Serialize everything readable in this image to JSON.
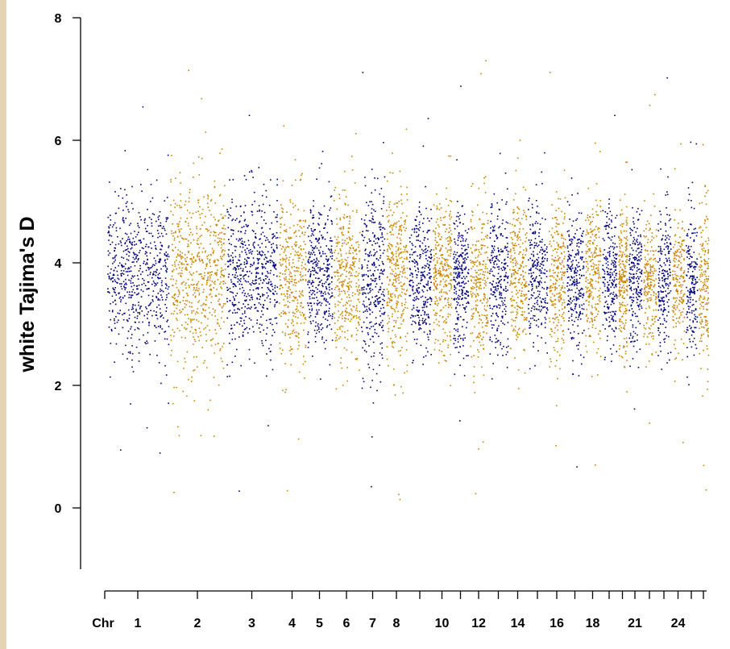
{
  "chart_data": {
    "type": "scatter",
    "title": "",
    "xlabel": "",
    "ylabel": "white Tajima's D",
    "ylim": [
      -1,
      8
    ],
    "y_ticks": [
      "0",
      "2",
      "4",
      "6",
      "8"
    ],
    "y_tick_values": [
      0,
      2,
      4,
      6,
      8
    ],
    "x_tick_prefix": "Chr",
    "colors": {
      "odd": "#00007f",
      "even": "#cc8400"
    },
    "chromosomes": [
      {
        "chr": 1,
        "label": "1",
        "center": 3.8,
        "spread": 0.62,
        "density": 620
      },
      {
        "chr": 2,
        "label": "2",
        "center": 3.8,
        "spread": 0.7,
        "density": 620
      },
      {
        "chr": 3,
        "label": "3",
        "center": 3.8,
        "spread": 0.62,
        "density": 560
      },
      {
        "chr": 4,
        "label": "4",
        "center": 3.75,
        "spread": 0.65,
        "density": 340
      },
      {
        "chr": 5,
        "label": "5",
        "center": 3.8,
        "spread": 0.55,
        "density": 340
      },
      {
        "chr": 6,
        "label": "6",
        "center": 3.75,
        "spread": 0.65,
        "density": 340
      },
      {
        "chr": 7,
        "label": "7",
        "center": 3.7,
        "spread": 0.75,
        "density": 320
      },
      {
        "chr": 8,
        "label": "8",
        "center": 3.8,
        "spread": 0.65,
        "density": 320
      },
      {
        "chr": 9,
        "label": "",
        "center": 3.75,
        "spread": 0.55,
        "density": 300
      },
      {
        "chr": 10,
        "label": "10",
        "center": 3.8,
        "spread": 0.6,
        "density": 300
      },
      {
        "chr": 11,
        "label": "",
        "center": 3.75,
        "spread": 0.6,
        "density": 260
      },
      {
        "chr": 12,
        "label": "12",
        "center": 3.7,
        "spread": 0.65,
        "density": 260
      },
      {
        "chr": 13,
        "label": "",
        "center": 3.8,
        "spread": 0.6,
        "density": 260
      },
      {
        "chr": 14,
        "label": "14",
        "center": 3.8,
        "spread": 0.6,
        "density": 260
      },
      {
        "chr": 15,
        "label": "",
        "center": 3.8,
        "spread": 0.55,
        "density": 250
      },
      {
        "chr": 16,
        "label": "16",
        "center": 3.7,
        "spread": 0.6,
        "density": 250
      },
      {
        "chr": 17,
        "label": "",
        "center": 3.7,
        "spread": 0.55,
        "density": 250
      },
      {
        "chr": 18,
        "label": "18",
        "center": 3.8,
        "spread": 0.55,
        "density": 240
      },
      {
        "chr": 19,
        "label": "",
        "center": 3.8,
        "spread": 0.55,
        "density": 230
      },
      {
        "chr": 20,
        "label": "",
        "center": 3.7,
        "spread": 0.6,
        "density": 220
      },
      {
        "chr": 21,
        "label": "21",
        "center": 3.75,
        "spread": 0.55,
        "density": 210
      },
      {
        "chr": 22,
        "label": "",
        "center": 3.7,
        "spread": 0.55,
        "density": 200
      },
      {
        "chr": 23,
        "label": "",
        "center": 3.75,
        "spread": 0.5,
        "density": 200
      },
      {
        "chr": 24,
        "label": "24",
        "center": 3.7,
        "spread": 0.55,
        "density": 190
      },
      {
        "chr": 25,
        "label": "",
        "center": 3.7,
        "spread": 0.55,
        "density": 180
      },
      {
        "chr": 26,
        "label": "",
        "center": 3.7,
        "spread": 0.6,
        "density": 180
      }
    ]
  }
}
